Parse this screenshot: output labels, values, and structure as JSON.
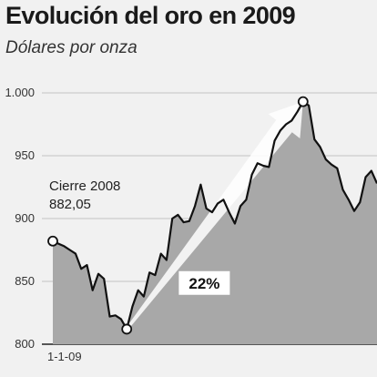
{
  "chart_data": {
    "type": "area",
    "title": "Evolución del oro en 2009",
    "subtitle": "Dólares por onza",
    "xlabel": "",
    "ylabel": "",
    "x_ticks": [
      "1-1-09"
    ],
    "y_ticks": [
      800,
      850,
      900,
      950,
      "1.000"
    ],
    "ylim": [
      800,
      1000
    ],
    "grid": true,
    "series": [
      {
        "values": [
          882.05,
          880,
          878,
          875,
          872,
          860,
          863,
          843,
          856,
          852,
          822,
          823,
          820,
          812,
          830,
          843,
          838,
          857,
          855,
          872,
          867,
          900,
          903,
          897,
          898,
          910,
          927,
          908,
          905,
          912,
          915,
          905,
          896,
          910,
          915,
          935,
          944,
          942,
          941,
          962,
          970,
          975,
          978,
          985,
          993,
          990,
          963,
          957,
          947,
          943,
          940,
          923,
          915,
          906,
          913,
          933,
          938,
          928
        ]
      }
    ],
    "annotations": {
      "start_label": "Cierre 2008",
      "start_value": "882,05",
      "gain_label": "22%"
    }
  }
}
